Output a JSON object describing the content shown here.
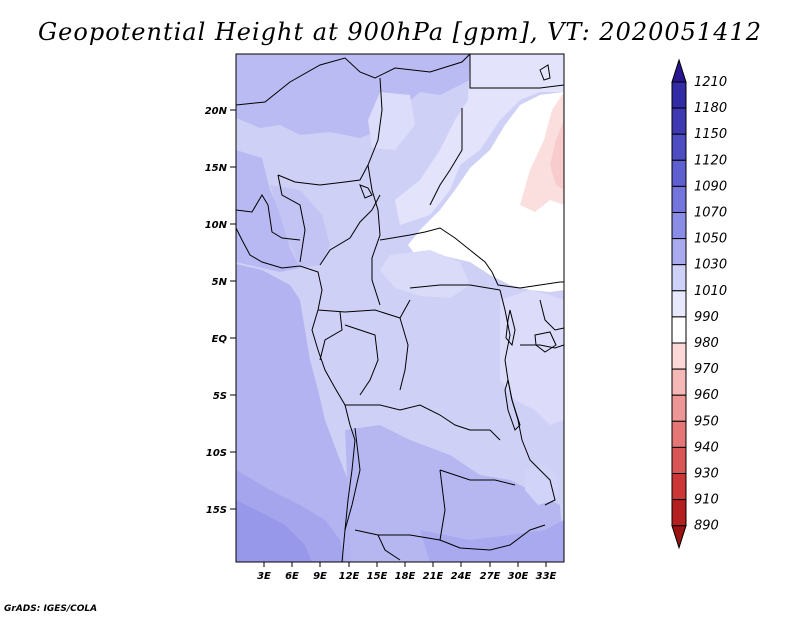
{
  "title": "Geopotential Height at 900hPa [gpm], VT: 2020051412",
  "credit": "GrADS: IGES/COLA",
  "map": {
    "lat_labels": [
      "20N",
      "15N",
      "10N",
      "5N",
      "EQ",
      "5S",
      "10S",
      "15S"
    ],
    "lon_labels": [
      "3E",
      "6E",
      "9E",
      "12E",
      "15E",
      "18E",
      "21E",
      "24E",
      "27E",
      "30E",
      "33E"
    ],
    "region": "Central and West Africa"
  },
  "colorbar": {
    "levels": [
      "1210",
      "1180",
      "1150",
      "1120",
      "1090",
      "1070",
      "1050",
      "1030",
      "1010",
      "990",
      "980",
      "970",
      "960",
      "950",
      "940",
      "930",
      "910",
      "890"
    ],
    "colors": [
      "#2a1590",
      "#332aa5",
      "#3f3ab4",
      "#4d4cc3",
      "#5f60d0",
      "#7375dc",
      "#8a8de6",
      "#a9aaf0",
      "#cfd2f8",
      "#e8e9fd",
      "#ffffff",
      "#fbd9d9",
      "#f6b7b7",
      "#ee9696",
      "#e57676",
      "#da5656",
      "#cc3636",
      "#b41f1f",
      "#9a1212"
    ]
  }
}
